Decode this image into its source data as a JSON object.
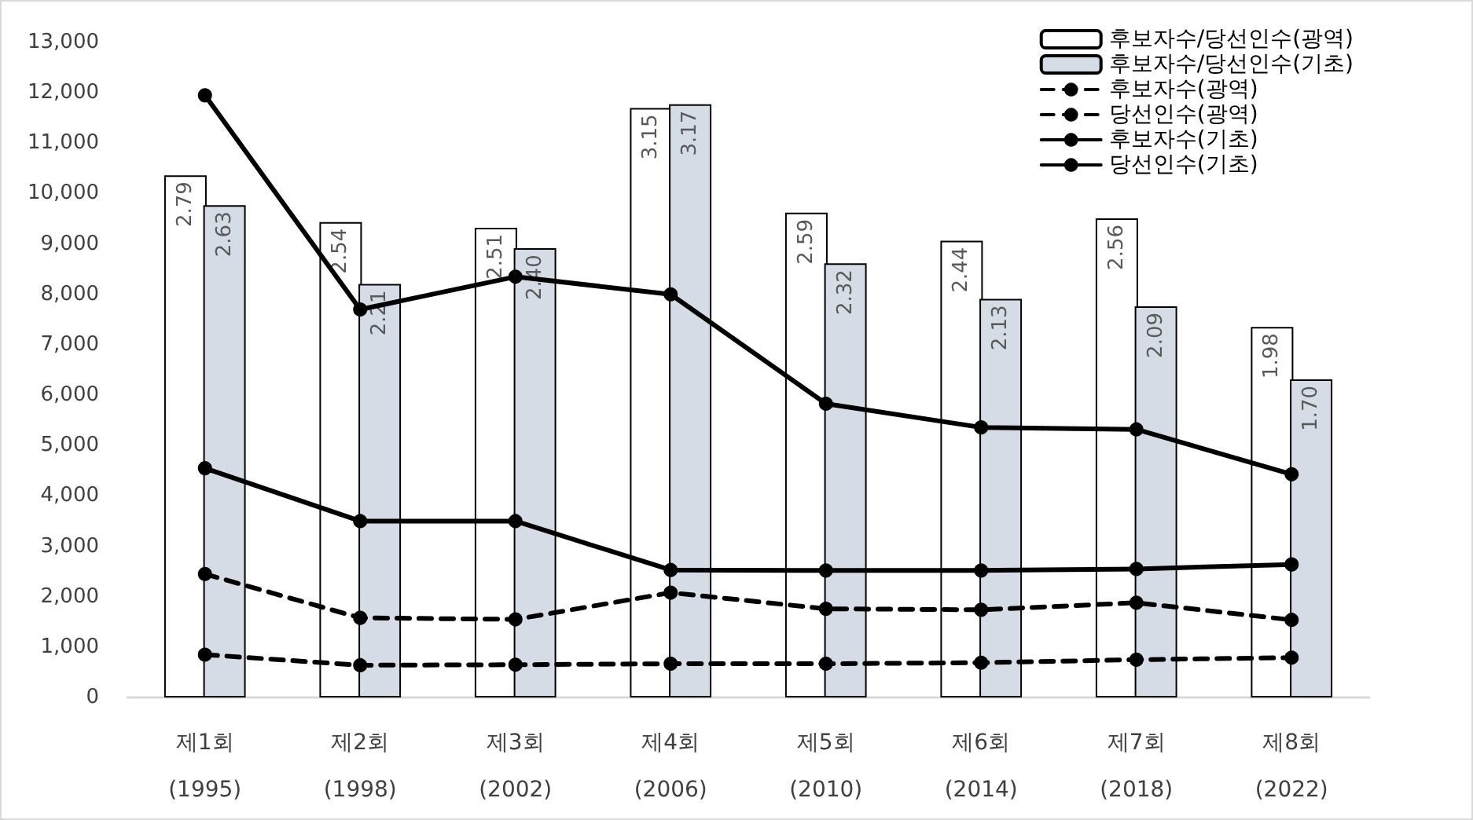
{
  "chart_data": {
    "type": "bar",
    "categories": [
      "제1회\n(1995)",
      "제2회\n(1998)",
      "제3회\n(2002)",
      "제4회\n(2006)",
      "제5회\n(2010)",
      "제6회\n(2014)",
      "제7회\n(2018)",
      "제8회\n(2022)"
    ],
    "series": [
      {
        "name": "후보자수/당선인수(광역)",
        "axis": "y2",
        "color": "#ffffff",
        "values": [
          2.79,
          2.54,
          2.51,
          3.15,
          2.59,
          2.44,
          2.56,
          1.98
        ],
        "value_labels": [
          "2.79",
          "2.54",
          "2.51",
          "3.15",
          "2.59",
          "2.44",
          "2.56",
          "1.98"
        ]
      },
      {
        "name": "후보자수/당선인수(기초)",
        "axis": "y2",
        "color": "#d6dce5",
        "values": [
          2.63,
          2.21,
          2.4,
          3.17,
          2.32,
          2.13,
          2.09,
          1.7
        ],
        "value_labels": [
          "2.63",
          "2.21",
          "2.40",
          "3.17",
          "2.32",
          "2.13",
          "2.09",
          "1.70"
        ]
      },
      {
        "name": "후보자수(광역)",
        "type": "line",
        "color": "#000000",
        "line_style": "dashed",
        "marker": "circle",
        "values": [
          2450,
          1580,
          1550,
          2080,
          1760,
          1740,
          1880,
          1540
        ]
      },
      {
        "name": "당선인수(광역)",
        "type": "line",
        "color": "#000000",
        "line_style": "dashed",
        "marker": "circle",
        "values": [
          850,
          640,
          650,
          670,
          670,
          690,
          750,
          790
        ]
      },
      {
        "name": "후보자수(기초)",
        "type": "line",
        "color": "#000000",
        "line_style": "solid",
        "marker": "circle",
        "values": [
          11950,
          7700,
          8350,
          8000,
          5830,
          5360,
          5320,
          4430
        ]
      },
      {
        "name": "당선인수(기초)",
        "type": "line",
        "color": "#000000",
        "line_style": "solid",
        "marker": "circle",
        "values": [
          4550,
          3500,
          3500,
          2530,
          2520,
          2520,
          2550,
          2640
        ]
      }
    ],
    "ylim": [
      0,
      13000
    ],
    "yticks": [
      0,
      {
        "value": 1000,
        "label": "1,000"
      },
      {
        "value": 2000,
        "label": "2,000"
      },
      {
        "value": 3000,
        "label": "3,000"
      },
      {
        "value": 4000,
        "label": "4,000"
      },
      {
        "value": 5000,
        "label": "5,000"
      },
      {
        "value": 6000,
        "label": "6,000"
      },
      {
        "value": 7000,
        "label": "7,000"
      },
      {
        "value": 8000,
        "label": "8,000"
      },
      {
        "value": 9000,
        "label": "9,000"
      },
      {
        "value": 10000,
        "label": "10,000"
      },
      {
        "value": 11000,
        "label": "11,000"
      },
      {
        "value": 12000,
        "label": "12,000"
      },
      {
        "value": 13000,
        "label": "13,000"
      }
    ],
    "grid": false,
    "legend": "top right"
  }
}
